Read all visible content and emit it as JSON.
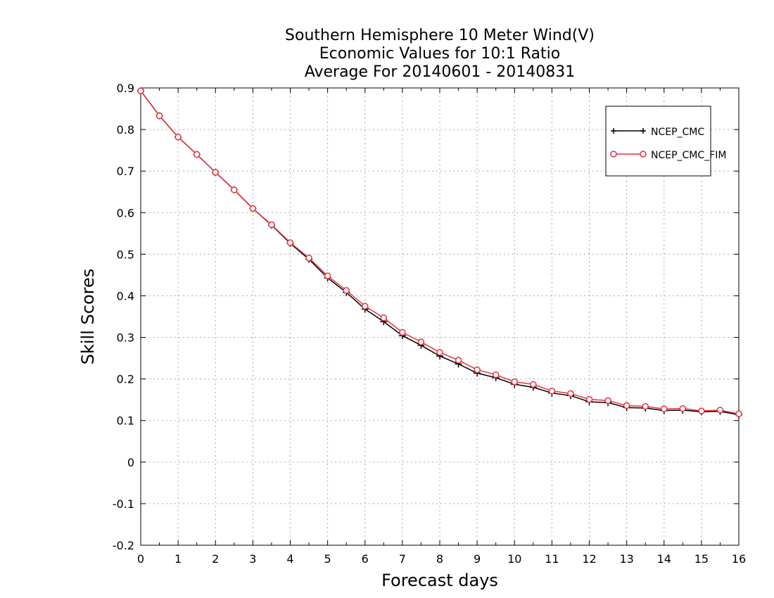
{
  "chart_data": {
    "type": "line",
    "title_lines": [
      "Southern Hemisphere 10 Meter Wind(V)",
      "Economic Values for 10:1 Ratio",
      "Average For 20140601 - 20140831"
    ],
    "xlabel": "Forecast days",
    "ylabel": "Skill Scores",
    "xlim": [
      0,
      16
    ],
    "ylim": [
      -0.2,
      0.9
    ],
    "xticks": [
      "0",
      "1",
      "2",
      "3",
      "4",
      "5",
      "6",
      "7",
      "8",
      "9",
      "10",
      "11",
      "12",
      "13",
      "14",
      "15",
      "16"
    ],
    "yticks": [
      "-0.2",
      "-0.1",
      "0",
      "0.1",
      "0.2",
      "0.3",
      "0.4",
      "0.5",
      "0.6",
      "0.7",
      "0.8",
      "0.9"
    ],
    "grid": true,
    "legend_position": "top-right",
    "x": [
      0,
      0.5,
      1,
      1.5,
      2,
      2.5,
      3,
      3.5,
      4,
      4.5,
      5,
      5.5,
      6,
      6.5,
      7,
      7.5,
      8,
      8.5,
      9,
      9.5,
      10,
      10.5,
      11,
      11.5,
      12,
      12.5,
      13,
      13.5,
      14,
      14.5,
      15,
      15.5,
      16
    ],
    "series": [
      {
        "name": "NCEP_CMC",
        "color": "#000000",
        "marker": "plus",
        "values": [
          0.893,
          0.833,
          0.782,
          0.74,
          0.697,
          0.655,
          0.61,
          0.57,
          0.526,
          0.488,
          0.443,
          0.408,
          0.368,
          0.338,
          0.304,
          0.281,
          0.255,
          0.236,
          0.214,
          0.203,
          0.187,
          0.18,
          0.166,
          0.16,
          0.145,
          0.143,
          0.131,
          0.13,
          0.124,
          0.125,
          0.121,
          0.122,
          0.114
        ]
      },
      {
        "name": "NCEP_CMC_FIM",
        "color": "#e8303a",
        "marker": "circle",
        "values": [
          0.893,
          0.833,
          0.782,
          0.74,
          0.697,
          0.655,
          0.61,
          0.571,
          0.528,
          0.491,
          0.448,
          0.413,
          0.375,
          0.347,
          0.312,
          0.289,
          0.264,
          0.245,
          0.222,
          0.21,
          0.193,
          0.187,
          0.171,
          0.165,
          0.151,
          0.148,
          0.136,
          0.134,
          0.128,
          0.129,
          0.123,
          0.125,
          0.116
        ]
      }
    ]
  }
}
